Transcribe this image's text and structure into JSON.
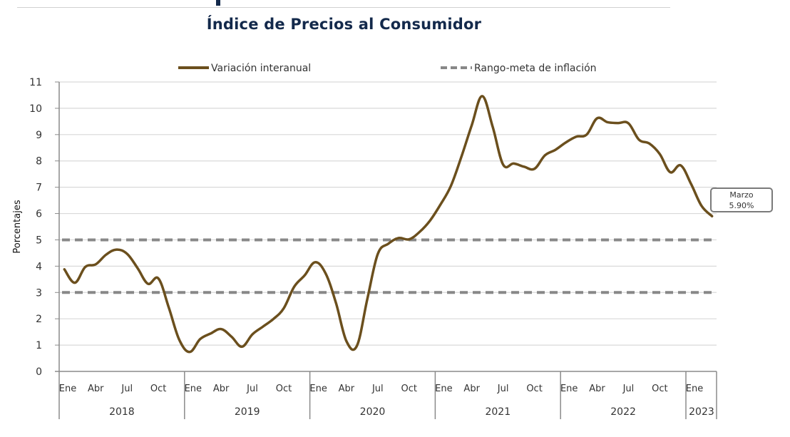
{
  "header": {
    "title": "Índice de Precios al Consumidor"
  },
  "chart_data": {
    "type": "line",
    "title": "Índice de Precios al Consumidor",
    "xlabel": "",
    "ylabel": "Porcentajes",
    "ylim": [
      0,
      11
    ],
    "yticks": [
      "0",
      "1",
      "2",
      "3",
      "4",
      "5",
      "6",
      "7",
      "8",
      "9",
      "10",
      "11"
    ],
    "grid": true,
    "legend_position": "top",
    "month_labels": [
      "Ene",
      "Abr",
      "Jul",
      "Oct"
    ],
    "years": [
      "2018",
      "2019",
      "2020",
      "2021",
      "2022",
      "2023"
    ],
    "start": "Ene 2018",
    "series": [
      {
        "name": "Variación interanual",
        "color": "#6b4f1d",
        "style": "solid",
        "values": [
          3.88,
          3.37,
          3.97,
          4.07,
          4.44,
          4.63,
          4.47,
          3.93,
          3.33,
          3.53,
          2.42,
          1.2,
          0.74,
          1.23,
          1.44,
          1.61,
          1.32,
          0.94,
          1.41,
          1.7,
          1.99,
          2.4,
          3.22,
          3.65,
          4.15,
          3.73,
          2.6,
          1.15,
          0.97,
          2.75,
          4.46,
          4.85,
          5.07,
          5.02,
          5.3,
          5.73,
          6.34,
          7.05,
          8.15,
          9.36,
          10.46,
          9.3,
          7.86,
          7.9,
          7.78,
          7.7,
          8.21,
          8.42,
          8.7,
          8.92,
          9.0,
          9.62,
          9.47,
          9.44,
          9.43,
          8.81,
          8.66,
          8.26,
          7.57,
          7.83,
          7.12,
          6.29,
          5.9
        ]
      },
      {
        "name": "Rango-meta de inflación",
        "color": "#888888",
        "style": "dashed",
        "bounds": [
          3,
          5
        ]
      }
    ],
    "annotation": {
      "label": "Marzo",
      "value_text": "5.90%",
      "target": "Mar 2023"
    }
  }
}
